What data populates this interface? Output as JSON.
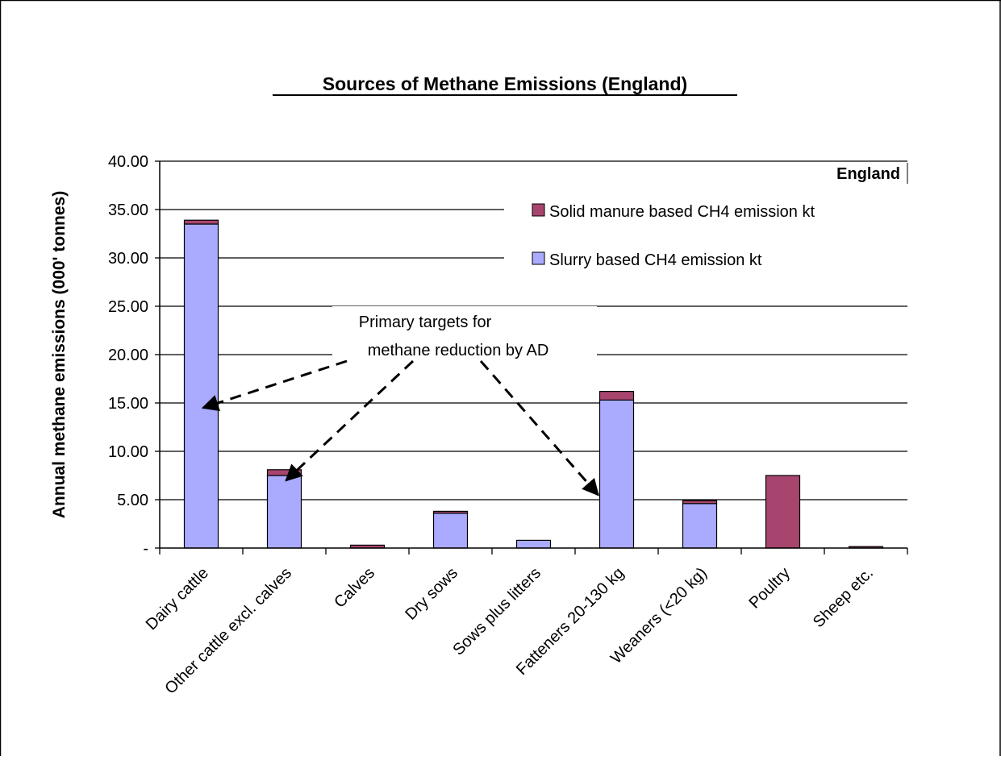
{
  "chart_data": {
    "type": "bar",
    "stacked": true,
    "title": "Sources of Methane Emissions (England)",
    "ylabel": "Annual methane emissions (000' tonnes)",
    "xlabel": "",
    "ylim": [
      0,
      40
    ],
    "yticks": [
      0,
      5,
      10,
      15,
      20,
      25,
      30,
      35,
      40
    ],
    "ytick_labels": [
      "-",
      "5.00",
      "10.00",
      "15.00",
      "20.00",
      "25.00",
      "30.00",
      "35.00",
      "40.00"
    ],
    "grid": true,
    "legend_position": "top-right",
    "legend_title": "England",
    "categories": [
      "Dairy cattle",
      "Other cattle excl. calves",
      "Calves",
      "Dry sows",
      "Sows plus litters",
      "Fatteners 20-130 kg",
      "Weaners (<20 kg)",
      "Poultry",
      "Sheep etc."
    ],
    "series": [
      {
        "name": "Slurry based CH4 emission kt",
        "color": "#aaaaff",
        "values": [
          33.5,
          7.5,
          0.0,
          3.6,
          0.8,
          15.3,
          4.6,
          0.0,
          0.0
        ]
      },
      {
        "name": "Solid manure based CH4 emission kt",
        "color": "#a8456f",
        "values": [
          0.4,
          0.6,
          0.3,
          0.2,
          0.0,
          0.9,
          0.3,
          7.5,
          0.15
        ]
      }
    ],
    "legend_order": [
      1,
      0
    ],
    "annotation": {
      "lines": [
        "Primary targets for",
        "methane reduction by AD"
      ],
      "arrow_targets": [
        "Dairy cattle",
        "Other cattle excl. calves",
        "Fatteners 20-130 kg"
      ]
    }
  }
}
